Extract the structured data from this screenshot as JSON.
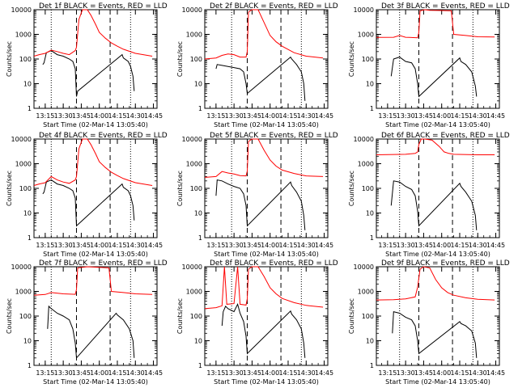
{
  "figure": {
    "x_tick_labels": [
      "13:15",
      "13:30",
      "13:45",
      "14:00",
      "14:15",
      "14:30",
      "14:45"
    ],
    "y_tick_labels": [
      "1",
      "10",
      "100",
      "1000",
      "10000"
    ],
    "ylabel": "Counts/sec",
    "xlabel": "Start Time (02-Mar-14 13:05:40)",
    "colors": {
      "events": "#000000",
      "lld": "#ff0000",
      "axes": "#000000"
    }
  },
  "chart_data": [
    {
      "type": "line",
      "title": "Det 1f BLACK = Events, RED = LLD",
      "xlabel": "Start Time (02-Mar-14 13:05:40)",
      "ylabel": "Counts/sec",
      "x_unit": "time (HH:MM)",
      "xlim": [
        "13:05:40",
        "14:48"
      ],
      "ylim": [
        1,
        10000
      ],
      "yscale": "log",
      "dashed_lines": [
        "13:41",
        "14:09"
      ],
      "dotted_lines": [
        "13:20",
        "14:26"
      ],
      "series": [
        {
          "name": "BLACK = Events",
          "color": "#000000",
          "x": [
            "13:13",
            "13:14",
            "13:16",
            "13:20",
            "13:25",
            "13:30",
            "13:35",
            "13:38",
            "13:40",
            "13:41",
            "13:42",
            "14:19",
            "14:20",
            "14:24",
            "14:26",
            "14:28",
            "14:29"
          ],
          "y": [
            60,
            70,
            180,
            220,
            150,
            130,
            100,
            80,
            40,
            3,
            5,
            150,
            110,
            80,
            50,
            20,
            5
          ]
        },
        {
          "name": "RED = LLD",
          "color": "#ff0000",
          "x": [
            "13:05:40",
            "13:10",
            "13:15",
            "13:20",
            "13:25",
            "13:30",
            "13:35",
            "13:40",
            "13:41",
            "13:43",
            "13:46",
            "13:50",
            "13:53",
            "13:57",
            "14:00",
            "14:05",
            "14:10",
            "14:15",
            "14:20",
            "14:30",
            "14:40",
            "14:44"
          ],
          "y": [
            130,
            150,
            170,
            230,
            200,
            170,
            150,
            220,
            300,
            4000,
            10000,
            10000,
            6000,
            2500,
            1200,
            700,
            450,
            330,
            250,
            170,
            140,
            130
          ]
        }
      ]
    },
    {
      "type": "line",
      "title": "Det 2f BLACK = Events, RED = LLD",
      "xlabel": "Start Time (02-Mar-14 13:05:40)",
      "ylabel": "Counts/sec",
      "x_unit": "time (HH:MM)",
      "xlim": [
        "13:05:40",
        "14:48"
      ],
      "ylim": [
        1,
        10000
      ],
      "yscale": "log",
      "dashed_lines": [
        "13:41",
        "14:09"
      ],
      "dotted_lines": [
        "13:28",
        "14:26"
      ],
      "series": [
        {
          "name": "BLACK = Events",
          "color": "#000000",
          "x": [
            "13:15",
            "13:16",
            "13:20",
            "13:25",
            "13:30",
            "13:35",
            "13:38",
            "13:40",
            "13:41",
            "14:17",
            "14:18",
            "14:22",
            "14:26",
            "14:28",
            "14:29"
          ],
          "y": [
            40,
            60,
            55,
            50,
            45,
            40,
            30,
            10,
            4,
            120,
            100,
            60,
            30,
            10,
            2
          ]
        },
        {
          "name": "RED = LLD",
          "color": "#ff0000",
          "x": [
            "13:05:40",
            "13:15",
            "13:20",
            "13:25",
            "13:30",
            "13:35",
            "13:40",
            "13:41",
            "13:42",
            "13:45",
            "13:50",
            "13:55",
            "14:00",
            "14:05",
            "14:10",
            "14:20",
            "14:30",
            "14:44"
          ],
          "y": [
            100,
            110,
            140,
            160,
            150,
            120,
            120,
            200,
            8000,
            10000,
            10000,
            3000,
            900,
            500,
            330,
            180,
            130,
            110
          ]
        }
      ]
    },
    {
      "type": "line",
      "title": "Det 3f BLACK = Events, RED = LLD",
      "xlabel": "Start Time (02-Mar-14 13:05:40)",
      "ylabel": "Counts/sec",
      "x_unit": "time (HH:MM)",
      "xlim": [
        "13:05:40",
        "14:48"
      ],
      "ylim": [
        1,
        10000
      ],
      "yscale": "log",
      "dashed_lines": [
        "13:41",
        "14:09"
      ],
      "dotted_lines": [
        "13:25",
        "14:26"
      ],
      "series": [
        {
          "name": "BLACK = Events",
          "color": "#000000",
          "x": [
            "13:18",
            "13:20",
            "13:25",
            "13:30",
            "13:35",
            "13:38",
            "13:40",
            "13:41",
            "14:15",
            "14:16",
            "14:20",
            "14:25",
            "14:28",
            "14:29"
          ],
          "y": [
            20,
            100,
            120,
            80,
            70,
            40,
            10,
            3,
            110,
            80,
            60,
            30,
            8,
            3
          ]
        },
        {
          "name": "RED = LLD",
          "color": "#ff0000",
          "x": [
            "13:05:40",
            "13:20",
            "13:25",
            "13:30",
            "13:40",
            "13:41",
            "13:42",
            "13:46",
            "13:50",
            "14:00",
            "14:08",
            "14:10",
            "14:20",
            "14:30",
            "14:44"
          ],
          "y": [
            750,
            760,
            900,
            760,
            730,
            1200,
            9000,
            10000,
            9500,
            9300,
            9000,
            1000,
            900,
            800,
            780
          ]
        }
      ]
    },
    {
      "type": "line",
      "title": "Det 4f BLACK = Events, RED = LLD",
      "xlabel": "Start Time (02-Mar-14 13:05:40)",
      "ylabel": "Counts/sec",
      "x_unit": "time (HH:MM)",
      "xlim": [
        "13:05:40",
        "14:48"
      ],
      "ylim": [
        1,
        10000
      ],
      "yscale": "log",
      "dashed_lines": [
        "13:41",
        "14:09"
      ],
      "dotted_lines": [
        "13:20",
        "14:26"
      ],
      "series": [
        {
          "name": "BLACK = Events",
          "color": "#000000",
          "x": [
            "13:13",
            "13:14",
            "13:16",
            "13:20",
            "13:25",
            "13:30",
            "13:35",
            "13:38",
            "13:40",
            "13:41",
            "14:19",
            "14:20",
            "14:24",
            "14:26",
            "14:28",
            "14:29"
          ],
          "y": [
            60,
            70,
            180,
            220,
            150,
            130,
            100,
            80,
            40,
            3,
            150,
            110,
            80,
            50,
            20,
            5
          ]
        },
        {
          "name": "RED = LLD",
          "color": "#ff0000",
          "x": [
            "13:05:40",
            "13:10",
            "13:15",
            "13:20",
            "13:25",
            "13:30",
            "13:35",
            "13:40",
            "13:41",
            "13:43",
            "13:46",
            "13:50",
            "13:53",
            "13:57",
            "14:00",
            "14:05",
            "14:10",
            "14:15",
            "14:20",
            "14:30",
            "14:40",
            "14:44"
          ],
          "y": [
            130,
            150,
            170,
            300,
            220,
            180,
            160,
            220,
            300,
            4000,
            10000,
            10000,
            6000,
            2500,
            1200,
            700,
            450,
            330,
            250,
            170,
            140,
            130
          ]
        }
      ]
    },
    {
      "type": "line",
      "title": "Det 5f BLACK = Events, RED = LLD",
      "xlabel": "Start Time (02-Mar-14 13:05:40)",
      "ylabel": "Counts/sec",
      "x_unit": "time (HH:MM)",
      "xlim": [
        "13:05:40",
        "14:48"
      ],
      "ylim": [
        1,
        10000
      ],
      "yscale": "log",
      "dashed_lines": [
        "13:41",
        "14:09"
      ],
      "dotted_lines": [
        "13:28",
        "14:26"
      ],
      "series": [
        {
          "name": "BLACK = Events",
          "color": "#000000",
          "x": [
            "13:15",
            "13:16",
            "13:20",
            "13:25",
            "13:30",
            "13:35",
            "13:38",
            "13:40",
            "13:41",
            "14:17",
            "14:18",
            "14:22",
            "14:26",
            "14:28",
            "14:29"
          ],
          "y": [
            50,
            220,
            200,
            150,
            120,
            100,
            60,
            20,
            3,
            180,
            130,
            70,
            30,
            8,
            2
          ]
        },
        {
          "name": "RED = LLD",
          "color": "#ff0000",
          "x": [
            "13:05:40",
            "13:15",
            "13:20",
            "13:25",
            "13:30",
            "13:35",
            "13:40",
            "13:41",
            "13:42",
            "13:45",
            "13:50",
            "13:55",
            "14:00",
            "14:05",
            "14:10",
            "14:20",
            "14:30",
            "14:44"
          ],
          "y": [
            280,
            300,
            480,
            420,
            380,
            330,
            320,
            500,
            8000,
            10000,
            10000,
            3500,
            1400,
            800,
            550,
            400,
            320,
            300
          ]
        }
      ]
    },
    {
      "type": "line",
      "title": "Det 6f BLACK = Events, RED = LLD",
      "xlabel": "Start Time (02-Mar-14 13:05:40)",
      "ylabel": "Counts/sec",
      "x_unit": "time (HH:MM)",
      "xlim": [
        "13:05:40",
        "14:48"
      ],
      "ylim": [
        1,
        10000
      ],
      "yscale": "log",
      "dashed_lines": [
        "13:41",
        "14:09"
      ],
      "dotted_lines": [
        "13:25",
        "14:26"
      ],
      "series": [
        {
          "name": "BLACK = Events",
          "color": "#000000",
          "x": [
            "13:18",
            "13:20",
            "13:25",
            "13:30",
            "13:35",
            "13:38",
            "13:40",
            "13:41",
            "14:15",
            "14:16",
            "14:20",
            "14:25",
            "14:28",
            "14:29"
          ],
          "y": [
            20,
            200,
            180,
            120,
            90,
            50,
            12,
            3,
            160,
            120,
            70,
            30,
            8,
            2
          ]
        },
        {
          "name": "RED = LLD",
          "color": "#ff0000",
          "x": [
            "13:05:40",
            "13:30",
            "13:38",
            "13:40",
            "13:41",
            "13:43",
            "13:46",
            "13:52",
            "13:58",
            "14:02",
            "14:06",
            "14:10",
            "14:30",
            "14:44"
          ],
          "y": [
            2300,
            2400,
            2600,
            3000,
            6000,
            10000,
            10000,
            9000,
            5000,
            3000,
            2600,
            2400,
            2300,
            2300
          ]
        }
      ]
    },
    {
      "type": "line",
      "title": "Det 7f BLACK = Events, RED = LLD",
      "xlabel": "Start Time (02-Mar-14 13:05:40)",
      "ylabel": "Counts/sec",
      "x_unit": "time (HH:MM)",
      "xlim": [
        "13:05:40",
        "14:48"
      ],
      "ylim": [
        1,
        10000
      ],
      "yscale": "log",
      "dashed_lines": [
        "13:41",
        "14:09"
      ],
      "dotted_lines": [
        "13:20",
        "14:26"
      ],
      "series": [
        {
          "name": "BLACK = Events",
          "color": "#000000",
          "x": [
            "13:17",
            "13:18",
            "13:20",
            "13:25",
            "13:30",
            "13:35",
            "13:38",
            "13:40",
            "13:41",
            "14:14",
            "14:15",
            "14:20",
            "14:25",
            "14:28",
            "14:29"
          ],
          "y": [
            30,
            250,
            200,
            130,
            100,
            70,
            30,
            8,
            2,
            130,
            110,
            70,
            30,
            10,
            2
          ]
        },
        {
          "name": "RED = LLD",
          "color": "#ff0000",
          "x": [
            "13:05:40",
            "13:15",
            "13:20",
            "13:30",
            "13:40",
            "13:41",
            "13:42",
            "13:50",
            "14:00",
            "14:08",
            "14:10",
            "14:20",
            "14:30",
            "14:44"
          ],
          "y": [
            700,
            750,
            900,
            800,
            760,
            1200,
            9000,
            10000,
            9500,
            9000,
            1000,
            900,
            800,
            750
          ]
        }
      ]
    },
    {
      "type": "line",
      "title": "Det 8f BLACK = Events, RED = LLD",
      "xlabel": "Start Time (02-Mar-14 13:05:40)",
      "ylabel": "Counts/sec",
      "x_unit": "time (HH:MM)",
      "xlim": [
        "13:05:40",
        "14:48"
      ],
      "ylim": [
        1,
        10000
      ],
      "yscale": "log",
      "dashed_lines": [
        "13:41",
        "14:09"
      ],
      "dotted_lines": [
        "13:28",
        "14:26"
      ],
      "series": [
        {
          "name": "BLACK = Events",
          "color": "#000000",
          "x": [
            "13:20",
            "13:21",
            "13:23",
            "13:25",
            "13:30",
            "13:33",
            "13:35",
            "13:38",
            "13:40",
            "13:41",
            "14:17",
            "14:18",
            "14:22",
            "14:26",
            "14:28",
            "14:29"
          ],
          "y": [
            40,
            150,
            250,
            200,
            150,
            300,
            130,
            60,
            15,
            3,
            160,
            120,
            70,
            30,
            8,
            2
          ]
        },
        {
          "name": "RED = LLD",
          "color": "#ff0000",
          "x": [
            "13:05:40",
            "13:15",
            "13:20",
            "13:22",
            "13:24",
            "13:30",
            "13:33",
            "13:35",
            "13:40",
            "13:41",
            "13:42",
            "13:45",
            "13:50",
            "13:55",
            "14:00",
            "14:05",
            "14:10",
            "14:20",
            "14:30",
            "14:44"
          ],
          "y": [
            200,
            220,
            260,
            10000,
            300,
            320,
            10000,
            300,
            280,
            500,
            8000,
            10000,
            10000,
            4000,
            1400,
            800,
            520,
            350,
            270,
            230
          ]
        }
      ]
    },
    {
      "type": "line",
      "title": "Det 9f BLACK = Events, RED = LLD",
      "xlabel": "Start Time (02-Mar-14 13:05:40)",
      "ylabel": "Counts/sec",
      "x_unit": "time (HH:MM)",
      "xlim": [
        "13:05:40",
        "14:48"
      ],
      "ylim": [
        1,
        10000
      ],
      "yscale": "log",
      "dashed_lines": [
        "13:41",
        "14:09"
      ],
      "dotted_lines": [
        "13:25",
        "14:26"
      ],
      "series": [
        {
          "name": "BLACK = Events",
          "color": "#000000",
          "x": [
            "13:19",
            "13:20",
            "13:25",
            "13:30",
            "13:35",
            "13:38",
            "13:40",
            "13:41",
            "14:15",
            "14:16",
            "14:20",
            "14:25",
            "14:28",
            "14:29"
          ],
          "y": [
            20,
            150,
            130,
            90,
            70,
            40,
            10,
            3,
            60,
            50,
            40,
            25,
            8,
            2
          ]
        },
        {
          "name": "RED = LLD",
          "color": "#ff0000",
          "x": [
            "13:05:40",
            "13:20",
            "13:30",
            "13:38",
            "13:40",
            "13:42",
            "13:45",
            "13:50",
            "13:55",
            "14:00",
            "14:05",
            "14:10",
            "14:20",
            "14:30",
            "14:44"
          ],
          "y": [
            450,
            460,
            500,
            600,
            1500,
            8000,
            10000,
            9000,
            3000,
            1400,
            900,
            700,
            550,
            480,
            450
          ]
        }
      ]
    }
  ]
}
